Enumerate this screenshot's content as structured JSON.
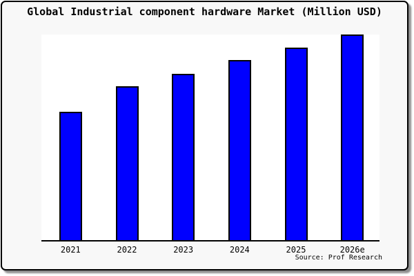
{
  "title": "Global Industrial component hardware Market (Million USD)",
  "source_credit": "Source: Prof Research",
  "colors": {
    "bar_fill": "#0000ff",
    "bar_border": "#000000",
    "frame_background": "#f8f8f8",
    "plot_background": "#ffffff",
    "axis_line": "#000000",
    "frame_border": "#000000",
    "shadow": "#8f8f8f",
    "text": "#000000"
  },
  "chart_data": {
    "type": "bar",
    "title": "Global Industrial component hardware Market (Million USD)",
    "categories": [
      "2021",
      "2022",
      "2023",
      "2024",
      "2025",
      "2026e"
    ],
    "values": [
      62.4,
      74.8,
      80.9,
      87.6,
      93.6,
      100.0
    ],
    "xlabel": "",
    "ylabel": "",
    "ylim": [
      0,
      100
    ],
    "grid": false,
    "legend": null,
    "y_axis_labels_shown": false,
    "note": "No y-axis scale or value labels are shown in the chart; values are bar heights expressed as percent of the tallest (2026e) bar.",
    "annotations": [
      "Source: Prof Research"
    ]
  }
}
